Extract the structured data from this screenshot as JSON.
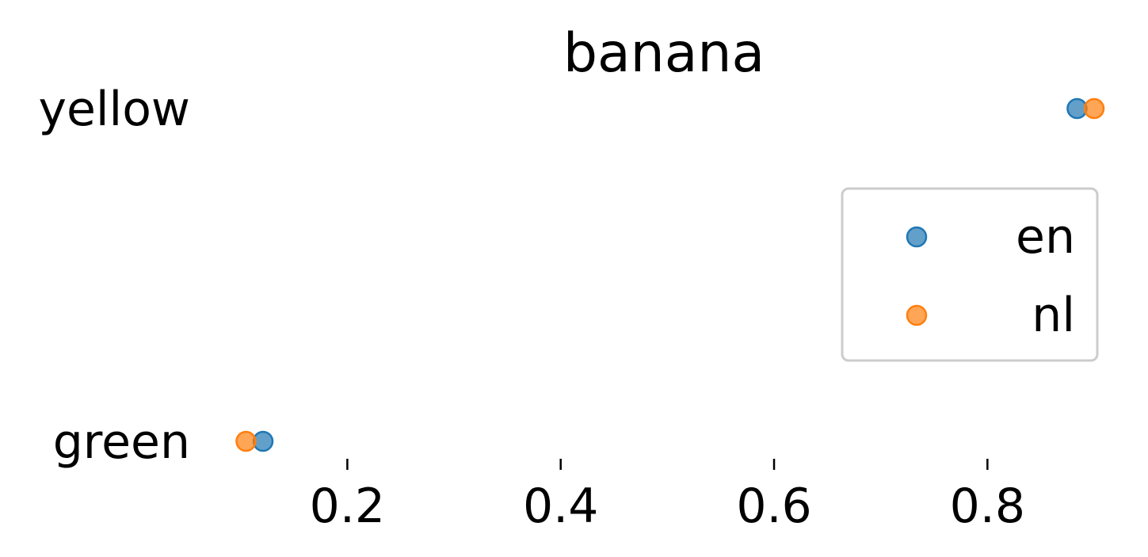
{
  "chart_data": {
    "type": "scatter",
    "title": "banana",
    "xlabel": "",
    "ylabel": "",
    "categories": [
      "green",
      "yellow"
    ],
    "xticks": [
      0.2,
      0.4,
      0.6,
      0.8
    ],
    "xtick_labels": [
      "0.2",
      "0.4",
      "0.6",
      "0.8"
    ],
    "xlim": [
      0.095,
      0.9
    ],
    "grid": false,
    "legend_position": "right",
    "series": [
      {
        "name": "en",
        "color": "#1f77b4",
        "values": [
          0.121,
          0.884
        ]
      },
      {
        "name": "nl",
        "color": "#ff7f0e",
        "values": [
          0.105,
          0.9
        ]
      }
    ]
  }
}
